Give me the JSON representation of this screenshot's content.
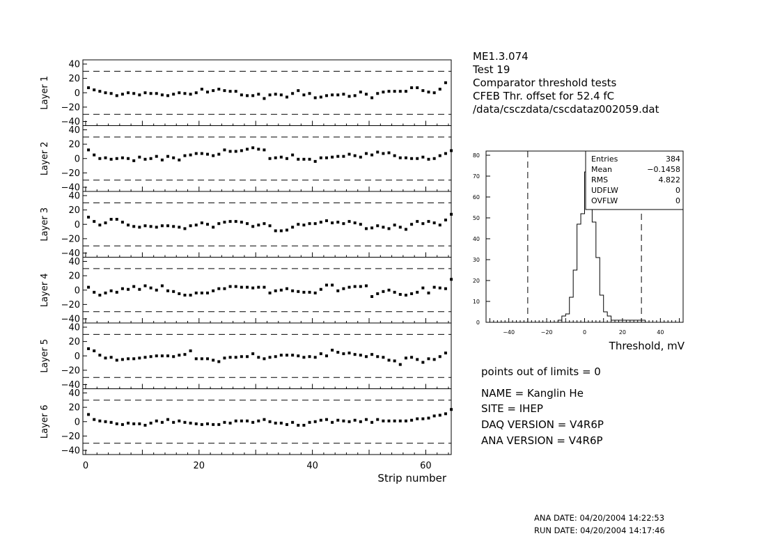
{
  "header": {
    "lines": [
      "ME1.3.074",
      "Test 19",
      "Comparator threshold tests",
      "CFEB Thr. offset for   52.4 fC",
      "/data/csczdata/cscdataz002059.dat"
    ]
  },
  "info": {
    "points_out": "points out of limits = 0",
    "name": "NAME =  Kanglin He",
    "site": "SITE =    IHEP",
    "daq": "DAQ VERSION =     V4R6P",
    "ana": "ANA VERSION =     V4R6P"
  },
  "dates": {
    "ana": "ANA DATE:  04/20/2004 14:22:53",
    "run": "RUN DATE:  04/20/2004 14:17:46"
  },
  "chart_data": [
    {
      "type": "scatter",
      "xlabel": "Strip number",
      "xlim": [
        0,
        64
      ],
      "ylim": [
        -40,
        40
      ],
      "xticks": [
        "0",
        "20",
        "40",
        "60"
      ],
      "yticks": [
        "40",
        "20",
        "0",
        "−20",
        "−40"
      ],
      "limit_lines": [
        30,
        -30
      ],
      "layers": [
        {
          "name": "Layer 1",
          "values": [
            7,
            4,
            2,
            0,
            -1,
            -4,
            -2,
            0,
            -1,
            -3,
            0,
            -1,
            -1,
            -3,
            -4,
            -2,
            0,
            -1,
            -2,
            0,
            5,
            1,
            3,
            5,
            3,
            2,
            2,
            -3,
            -4,
            -4,
            -2,
            -8,
            -3,
            -2,
            -3,
            -6,
            -1,
            3,
            -3,
            -1,
            -7,
            -6,
            -4,
            -3,
            -3,
            -2,
            -5,
            -4,
            1,
            -2,
            -7,
            -1,
            1,
            2,
            2,
            2,
            2,
            7,
            7,
            3,
            1,
            0,
            5,
            14
          ]
        },
        {
          "name": "Layer 2",
          "values": [
            12,
            5,
            0,
            1,
            -1,
            0,
            1,
            0,
            -3,
            2,
            -1,
            0,
            3,
            -2,
            3,
            1,
            -2,
            4,
            5,
            7,
            7,
            6,
            4,
            6,
            12,
            10,
            10,
            11,
            13,
            15,
            13,
            12,
            0,
            1,
            2,
            0,
            5,
            -1,
            -1,
            -1,
            -4,
            1,
            1,
            2,
            3,
            3,
            6,
            4,
            2,
            7,
            5,
            9,
            7,
            8,
            4,
            1,
            1,
            0,
            0,
            2,
            -1,
            0,
            4,
            7,
            11
          ]
        },
        {
          "name": "Layer 3",
          "values": [
            10,
            4,
            -1,
            2,
            7,
            7,
            3,
            -1,
            -3,
            -4,
            -2,
            -3,
            -4,
            -2,
            -2,
            -3,
            -4,
            -6,
            -2,
            -1,
            2,
            0,
            -4,
            1,
            3,
            4,
            4,
            3,
            1,
            -3,
            -1,
            1,
            -2,
            -9,
            -9,
            -8,
            -4,
            0,
            -1,
            1,
            1,
            3,
            5,
            2,
            3,
            1,
            4,
            2,
            0,
            -6,
            -5,
            -2,
            -4,
            -6,
            -1,
            -4,
            -7,
            0,
            4,
            1,
            4,
            2,
            -1,
            6,
            14
          ]
        },
        {
          "name": "Layer 4",
          "values": [
            4,
            -3,
            -7,
            -4,
            -1,
            -3,
            2,
            1,
            5,
            1,
            6,
            3,
            0,
            6,
            -1,
            -2,
            -5,
            -7,
            -7,
            -4,
            -4,
            -4,
            -1,
            2,
            2,
            5,
            5,
            4,
            4,
            3,
            4,
            4,
            -4,
            -1,
            0,
            2,
            -1,
            -2,
            -3,
            -3,
            -4,
            1,
            7,
            7,
            -1,
            2,
            4,
            5,
            5,
            6,
            -9,
            -5,
            -2,
            0,
            -3,
            -6,
            -7,
            -5,
            -3,
            3,
            -4,
            4,
            3,
            2,
            15
          ]
        },
        {
          "name": "Layer 5",
          "values": [
            10,
            7,
            1,
            -3,
            -2,
            -6,
            -5,
            -4,
            -4,
            -3,
            -2,
            -1,
            0,
            0,
            0,
            -1,
            1,
            2,
            7,
            -4,
            -4,
            -4,
            -6,
            -8,
            -3,
            -2,
            -2,
            -1,
            -1,
            3,
            -2,
            -4,
            -2,
            -1,
            1,
            1,
            1,
            0,
            -2,
            -1,
            -2,
            3,
            0,
            8,
            5,
            3,
            4,
            2,
            1,
            -1,
            2,
            -1,
            -2,
            -6,
            -7,
            -12,
            -3,
            -2,
            -5,
            -9,
            -4,
            -5,
            -1,
            4
          ]
        },
        {
          "name": "Layer 6",
          "values": [
            10,
            3,
            1,
            0,
            -1,
            -3,
            -4,
            -2,
            -3,
            -3,
            -5,
            -2,
            1,
            -1,
            3,
            -1,
            1,
            -1,
            -2,
            -3,
            -4,
            -3,
            -4,
            -4,
            -1,
            -2,
            1,
            1,
            1,
            -1,
            1,
            3,
            0,
            -2,
            -2,
            -4,
            -1,
            -5,
            -5,
            -1,
            0,
            2,
            3,
            -1,
            2,
            1,
            0,
            2,
            0,
            3,
            -1,
            3,
            1,
            1,
            1,
            1,
            1,
            2,
            4,
            4,
            5,
            8,
            9,
            11,
            17
          ]
        }
      ]
    },
    {
      "type": "bar",
      "stat_box": {
        "rows": [
          {
            "label": "Entries",
            "value": "384"
          },
          {
            "label": "Mean",
            "value": "−0.1458"
          },
          {
            "label": "RMS",
            "value": "4.822"
          },
          {
            "label": "UDFLW",
            "value": "0"
          },
          {
            "label": "OVFLW",
            "value": "0"
          }
        ]
      },
      "xlabel": "Threshold, mV",
      "xlim": [
        -52,
        52
      ],
      "ylim": [
        0,
        82
      ],
      "xticks": [
        "−40",
        "−20",
        "0",
        "20",
        "40"
      ],
      "yticks": [
        "0",
        "10",
        "20",
        "30",
        "40",
        "50",
        "60",
        "70",
        "80"
      ],
      "limit_lines": [
        -30,
        30
      ],
      "bin_width": 2,
      "bins_start": -14,
      "counts": [
        1,
        3,
        4,
        12,
        25,
        47,
        52,
        72,
        69,
        48,
        31,
        13,
        5,
        3,
        1,
        1,
        1,
        1,
        1,
        1,
        1,
        1,
        1
      ]
    }
  ]
}
